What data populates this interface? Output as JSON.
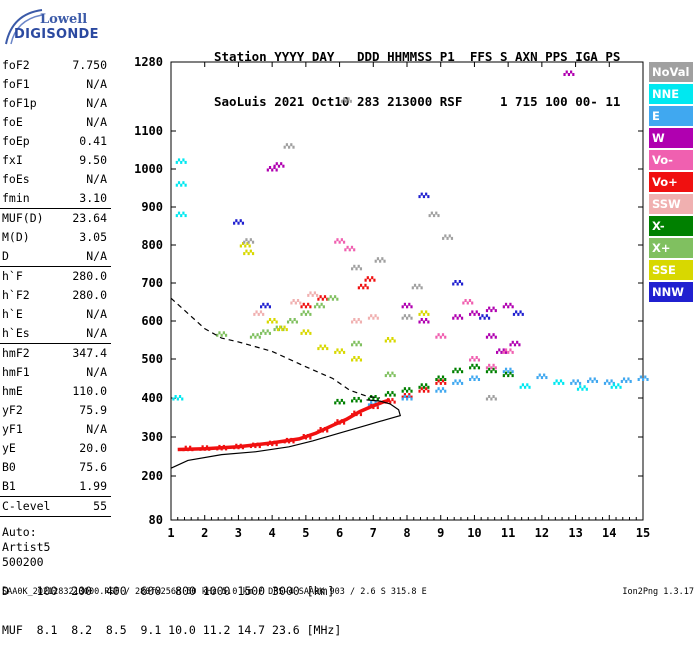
{
  "logo": {
    "line1": "Lowell",
    "line2": "DIGISONDE"
  },
  "header": {
    "line1": "Station YYYY DAY   DDD HHMMSS P1  FFS S AXN PPS IGA PS",
    "line2": "SaoLuis 2021 Oct10 283 213000 RSF     1 715 100 00- 11"
  },
  "params": {
    "group1": [
      {
        "label": "foF2",
        "value": "7.750"
      },
      {
        "label": "foF1",
        "value": "N/A"
      },
      {
        "label": "foF1p",
        "value": "N/A"
      },
      {
        "label": "foE",
        "value": "N/A"
      },
      {
        "label": "foEp",
        "value": "0.41"
      },
      {
        "label": "fxI",
        "value": "9.50"
      },
      {
        "label": "foEs",
        "value": "N/A"
      },
      {
        "label": "fmin",
        "value": "3.10"
      }
    ],
    "group2": [
      {
        "label": "MUF(D)",
        "value": "23.64"
      },
      {
        "label": "M(D)",
        "value": "3.05"
      },
      {
        "label": "D",
        "value": "N/A"
      }
    ],
    "group3": [
      {
        "label": "h`F",
        "value": "280.0"
      },
      {
        "label": "h`F2",
        "value": "280.0"
      },
      {
        "label": "h`E",
        "value": "N/A"
      },
      {
        "label": "h`Es",
        "value": "N/A"
      }
    ],
    "group4": [
      {
        "label": "hmF2",
        "value": "347.4"
      },
      {
        "label": "hmF1",
        "value": "N/A"
      },
      {
        "label": "hmE",
        "value": "110.0"
      },
      {
        "label": "yF2",
        "value": "75.9"
      },
      {
        "label": "yF1",
        "value": "N/A"
      },
      {
        "label": "yE",
        "value": "20.0"
      },
      {
        "label": "B0",
        "value": "75.6"
      },
      {
        "label": "B1",
        "value": "1.99"
      }
    ],
    "group5": [
      {
        "label": "C-level",
        "value": "55"
      }
    ],
    "auto": [
      "Auto:",
      "Artist5",
      "500200"
    ]
  },
  "legend": [
    {
      "label": "NoVal",
      "color": "#a0a0a0"
    },
    {
      "label": "NNE",
      "color": "#00e8f0"
    },
    {
      "label": "E",
      "color": "#40a8f0"
    },
    {
      "label": "W",
      "color": "#b000b0"
    },
    {
      "label": "Vo-",
      "color": "#f060b0"
    },
    {
      "label": "Vo+",
      "color": "#f01010"
    },
    {
      "label": "SSW",
      "color": "#f0b0b0"
    },
    {
      "label": "X-",
      "color": "#008000"
    },
    {
      "label": "X+",
      "color": "#80c060"
    },
    {
      "label": "SSE",
      "color": "#d8d800"
    },
    {
      "label": "NNW",
      "color": "#2020d0"
    }
  ],
  "footer": {
    "d_row": "D    100  200  400  600  800 1000 1500 3000 [km]",
    "muf_row": "MUF  8.1  8.2  8.5  9.1 10.0 11.2 14.7 23.6 [MHz]",
    "source": "SAA0K_2021283213000.RSF / 280fx256h 50 kHz 5.0 km / DPS-4 SAA0K 903 / 2.6 S 315.8 E",
    "version": "Ion2Png 1.3.17"
  },
  "chart_data": {
    "type": "scatter",
    "title": "",
    "xlabel": "",
    "ylabel": "",
    "xlim": [
      1,
      15
    ],
    "ylim": [
      80,
      1280
    ],
    "xticks": [
      1,
      2,
      3,
      4,
      5,
      6,
      7,
      8,
      9,
      10,
      11,
      12,
      13,
      14,
      15
    ],
    "yticks": [
      80,
      200,
      300,
      400,
      500,
      600,
      700,
      800,
      900,
      1000,
      1100,
      1280
    ],
    "y_scale": "nonlinear-ionogram",
    "grid": false,
    "legend_position": "right",
    "profile_curve": [
      [
        1.0,
        220
      ],
      [
        1.5,
        240
      ],
      [
        2.5,
        255
      ],
      [
        3.5,
        262
      ],
      [
        4.5,
        275
      ],
      [
        5.2,
        290
      ],
      [
        6.0,
        310
      ],
      [
        6.8,
        330
      ],
      [
        7.4,
        345
      ],
      [
        7.8,
        355
      ],
      [
        7.75,
        370
      ],
      [
        7.5,
        385
      ],
      [
        7.2,
        392
      ],
      [
        6.8,
        395
      ]
    ],
    "ordinary_trace": [
      [
        1.2,
        268
      ],
      [
        2.0,
        270
      ],
      [
        3.0,
        275
      ],
      [
        4.0,
        285
      ],
      [
        4.8,
        295
      ],
      [
        5.3,
        310
      ],
      [
        5.8,
        330
      ],
      [
        6.2,
        345
      ],
      [
        6.6,
        365
      ],
      [
        7.0,
        380
      ],
      [
        7.3,
        390
      ],
      [
        7.5,
        395
      ]
    ],
    "dashed_profile": [
      [
        1.0,
        660
      ],
      [
        1.5,
        620
      ],
      [
        2.0,
        580
      ],
      [
        2.5,
        555
      ],
      [
        3.0,
        545
      ],
      [
        4.0,
        520
      ],
      [
        5.0,
        480
      ],
      [
        5.8,
        450
      ],
      [
        6.3,
        420
      ],
      [
        6.8,
        405
      ],
      [
        7.2,
        400
      ]
    ],
    "echo_groups": [
      {
        "name": "Vo+",
        "points": [
          [
            1.5,
            270
          ],
          [
            2.0,
            271
          ],
          [
            2.5,
            272
          ],
          [
            3.0,
            275
          ],
          [
            3.5,
            278
          ],
          [
            4.0,
            283
          ],
          [
            4.5,
            290
          ],
          [
            5.0,
            300
          ],
          [
            5.5,
            318
          ],
          [
            6.0,
            338
          ],
          [
            6.5,
            360
          ],
          [
            7.0,
            378
          ],
          [
            7.5,
            392
          ],
          [
            8.0,
            405
          ],
          [
            8.5,
            420
          ],
          [
            9.0,
            440
          ],
          [
            6.7,
            690
          ],
          [
            6.9,
            710
          ],
          [
            5.0,
            640
          ],
          [
            5.5,
            660
          ]
        ]
      },
      {
        "name": "X-",
        "points": [
          [
            6.0,
            390
          ],
          [
            6.5,
            395
          ],
          [
            7.0,
            400
          ],
          [
            7.5,
            410
          ],
          [
            8.0,
            420
          ],
          [
            8.5,
            430
          ],
          [
            9.0,
            450
          ],
          [
            9.5,
            470
          ],
          [
            10.0,
            480
          ],
          [
            10.5,
            470
          ],
          [
            11.0,
            460
          ]
        ]
      },
      {
        "name": "X+",
        "points": [
          [
            4.2,
            580
          ],
          [
            4.6,
            600
          ],
          [
            5.0,
            620
          ],
          [
            5.4,
            640
          ],
          [
            5.8,
            660
          ],
          [
            3.5,
            560
          ],
          [
            3.8,
            570
          ],
          [
            2.5,
            565
          ],
          [
            6.5,
            540
          ],
          [
            7.5,
            460
          ]
        ]
      },
      {
        "name": "E",
        "points": [
          [
            7.0,
            385
          ],
          [
            8.0,
            400
          ],
          [
            9.0,
            420
          ],
          [
            9.5,
            440
          ],
          [
            10.0,
            450
          ],
          [
            11.0,
            470
          ],
          [
            12.0,
            455
          ],
          [
            13.0,
            440
          ],
          [
            13.5,
            445
          ],
          [
            14.0,
            440
          ],
          [
            14.5,
            445
          ],
          [
            15.0,
            450
          ]
        ]
      },
      {
        "name": "NNE",
        "points": [
          [
            1.3,
            1020
          ],
          [
            1.3,
            960
          ],
          [
            1.3,
            880
          ],
          [
            1.2,
            400
          ],
          [
            11.5,
            430
          ],
          [
            12.5,
            440
          ],
          [
            13.2,
            425
          ],
          [
            14.2,
            430
          ]
        ]
      },
      {
        "name": "W",
        "points": [
          [
            9.5,
            610
          ],
          [
            10.0,
            620
          ],
          [
            10.5,
            630
          ],
          [
            11.0,
            640
          ],
          [
            10.5,
            560
          ],
          [
            10.8,
            520
          ],
          [
            11.2,
            540
          ],
          [
            8.0,
            640
          ],
          [
            8.5,
            600
          ],
          [
            4.0,
            1000
          ],
          [
            4.2,
            1010
          ],
          [
            12.8,
            1250
          ]
        ]
      },
      {
        "name": "Vo-",
        "points": [
          [
            9.0,
            560
          ],
          [
            10.0,
            500
          ],
          [
            10.5,
            480
          ],
          [
            11.0,
            520
          ],
          [
            9.8,
            650
          ],
          [
            6.0,
            810
          ],
          [
            6.3,
            790
          ]
        ]
      },
      {
        "name": "SSE",
        "points": [
          [
            3.2,
            800
          ],
          [
            3.3,
            780
          ],
          [
            4.0,
            600
          ],
          [
            4.3,
            580
          ],
          [
            5.0,
            570
          ],
          [
            5.5,
            530
          ],
          [
            6.0,
            520
          ],
          [
            6.5,
            500
          ],
          [
            7.5,
            550
          ],
          [
            8.5,
            620
          ]
        ]
      },
      {
        "name": "SSW",
        "points": [
          [
            7.0,
            610
          ],
          [
            6.5,
            600
          ],
          [
            5.2,
            670
          ],
          [
            4.7,
            650
          ],
          [
            3.6,
            620
          ]
        ]
      },
      {
        "name": "NNW",
        "points": [
          [
            3.0,
            860
          ],
          [
            3.8,
            640
          ],
          [
            8.5,
            930
          ],
          [
            9.5,
            700
          ],
          [
            10.3,
            610
          ],
          [
            11.3,
            620
          ]
        ]
      },
      {
        "name": "NoVal",
        "points": [
          [
            3.3,
            810
          ],
          [
            6.2,
            1180
          ],
          [
            8.8,
            880
          ],
          [
            9.2,
            820
          ],
          [
            8.0,
            610
          ],
          [
            8.3,
            690
          ],
          [
            7.2,
            760
          ],
          [
            6.5,
            740
          ],
          [
            10.5,
            400
          ],
          [
            4.5,
            1060
          ]
        ]
      }
    ]
  }
}
